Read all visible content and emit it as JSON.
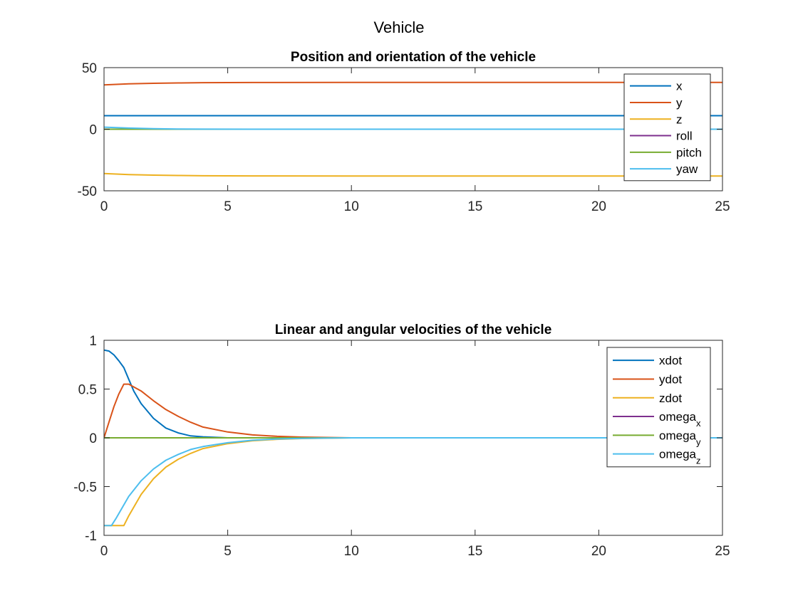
{
  "figure_title": "Vehicle",
  "colors": {
    "blue": "#0072BD",
    "orange": "#D95319",
    "yellow": "#EDB120",
    "purple": "#7E2F8E",
    "green": "#77AC30",
    "cyan": "#4DBEEE"
  },
  "chart_data": [
    {
      "type": "line",
      "title": "Position and orientation of the vehicle",
      "xlabel": "",
      "ylabel": "",
      "xlim": [
        0,
        25
      ],
      "ylim": [
        -50,
        50
      ],
      "xticks": [
        "0",
        "5",
        "10",
        "15",
        "20",
        "25"
      ],
      "yticks": [
        "-50",
        "0",
        "50"
      ],
      "grid": false,
      "legend_position": "top-right",
      "series": [
        {
          "name": "x",
          "color": "#0072BD",
          "points": [
            [
              0,
              11
            ],
            [
              25,
              11
            ]
          ]
        },
        {
          "name": "y",
          "color": "#D95319",
          "points": [
            [
              0,
              36
            ],
            [
              0.5,
              36.4
            ],
            [
              1,
              36.8
            ],
            [
              2,
              37.3
            ],
            [
              3,
              37.6
            ],
            [
              4,
              37.8
            ],
            [
              6,
              37.9
            ],
            [
              10,
              38
            ],
            [
              25,
              38
            ]
          ]
        },
        {
          "name": "z",
          "color": "#EDB120",
          "points": [
            [
              0,
              -36
            ],
            [
              0.5,
              -36.4
            ],
            [
              1,
              -36.8
            ],
            [
              2,
              -37.3
            ],
            [
              3,
              -37.6
            ],
            [
              4,
              -37.8
            ],
            [
              6,
              -37.9
            ],
            [
              10,
              -38
            ],
            [
              25,
              -38
            ]
          ]
        },
        {
          "name": "roll",
          "color": "#7E2F8E",
          "points": [
            [
              0,
              0
            ],
            [
              25,
              0
            ]
          ]
        },
        {
          "name": "pitch",
          "color": "#77AC30",
          "points": [
            [
              0,
              0
            ],
            [
              25,
              0
            ]
          ]
        },
        {
          "name": "yaw",
          "color": "#4DBEEE",
          "points": [
            [
              0,
              1.7
            ],
            [
              0.5,
              1.3
            ],
            [
              1,
              0.9
            ],
            [
              2,
              0.4
            ],
            [
              3,
              0.2
            ],
            [
              4,
              0.08
            ],
            [
              6,
              0.02
            ],
            [
              10,
              0
            ],
            [
              25,
              0
            ]
          ]
        }
      ]
    },
    {
      "type": "line",
      "title": "Linear and angular velocities of the vehicle",
      "xlabel": "",
      "ylabel": "",
      "xlim": [
        0,
        25
      ],
      "ylim": [
        -1,
        1
      ],
      "xticks": [
        "0",
        "5",
        "10",
        "15",
        "20",
        "25"
      ],
      "yticks": [
        "-1",
        "-0.5",
        "0",
        "0.5",
        "1"
      ],
      "grid": false,
      "legend_position": "top-right",
      "series": [
        {
          "name": "xdot",
          "sub": "",
          "color": "#0072BD",
          "points": [
            [
              0,
              0.9
            ],
            [
              0.2,
              0.89
            ],
            [
              0.4,
              0.85
            ],
            [
              0.6,
              0.79
            ],
            [
              0.8,
              0.72
            ],
            [
              1.0,
              0.6
            ],
            [
              1.2,
              0.48
            ],
            [
              1.5,
              0.35
            ],
            [
              2.0,
              0.2
            ],
            [
              2.5,
              0.1
            ],
            [
              3.0,
              0.05
            ],
            [
              3.5,
              0.02
            ],
            [
              4.0,
              0.01
            ],
            [
              5.0,
              0.0
            ],
            [
              25,
              0.0
            ]
          ]
        },
        {
          "name": "ydot",
          "sub": "",
          "color": "#D95319",
          "points": [
            [
              0,
              0.0
            ],
            [
              0.2,
              0.16
            ],
            [
              0.4,
              0.32
            ],
            [
              0.6,
              0.45
            ],
            [
              0.8,
              0.55
            ],
            [
              1.0,
              0.55
            ],
            [
              1.5,
              0.48
            ],
            [
              2.0,
              0.38
            ],
            [
              2.5,
              0.29
            ],
            [
              3.0,
              0.22
            ],
            [
              3.5,
              0.16
            ],
            [
              4.0,
              0.11
            ],
            [
              5.0,
              0.06
            ],
            [
              6.0,
              0.03
            ],
            [
              7.0,
              0.015
            ],
            [
              8.0,
              0.007
            ],
            [
              10.0,
              0.0
            ],
            [
              25,
              0.0
            ]
          ]
        },
        {
          "name": "zdot",
          "sub": "",
          "color": "#EDB120",
          "points": [
            [
              0,
              -0.9
            ],
            [
              0.8,
              -0.9
            ],
            [
              1.0,
              -0.8
            ],
            [
              1.5,
              -0.58
            ],
            [
              2.0,
              -0.42
            ],
            [
              2.5,
              -0.3
            ],
            [
              3.0,
              -0.22
            ],
            [
              3.5,
              -0.16
            ],
            [
              4.0,
              -0.11
            ],
            [
              5.0,
              -0.06
            ],
            [
              6.0,
              -0.03
            ],
            [
              7.0,
              -0.015
            ],
            [
              8.0,
              -0.007
            ],
            [
              10.0,
              0.0
            ],
            [
              25,
              0.0
            ]
          ]
        },
        {
          "name": "omega",
          "sub": "x",
          "color": "#7E2F8E",
          "points": [
            [
              0,
              0
            ],
            [
              25,
              0
            ]
          ]
        },
        {
          "name": "omega",
          "sub": "y",
          "color": "#77AC30",
          "points": [
            [
              0,
              0
            ],
            [
              25,
              0
            ]
          ]
        },
        {
          "name": "omega",
          "sub": "z",
          "color": "#4DBEEE",
          "points": [
            [
              0,
              -0.9
            ],
            [
              0.3,
              -0.9
            ],
            [
              0.5,
              -0.82
            ],
            [
              1.0,
              -0.6
            ],
            [
              1.5,
              -0.44
            ],
            [
              2.0,
              -0.32
            ],
            [
              2.5,
              -0.23
            ],
            [
              3.0,
              -0.17
            ],
            [
              3.5,
              -0.12
            ],
            [
              4.0,
              -0.09
            ],
            [
              5.0,
              -0.05
            ],
            [
              6.0,
              -0.025
            ],
            [
              7.0,
              -0.012
            ],
            [
              8.0,
              -0.005
            ],
            [
              10.0,
              0.0
            ],
            [
              25,
              0.0
            ]
          ]
        }
      ]
    }
  ]
}
